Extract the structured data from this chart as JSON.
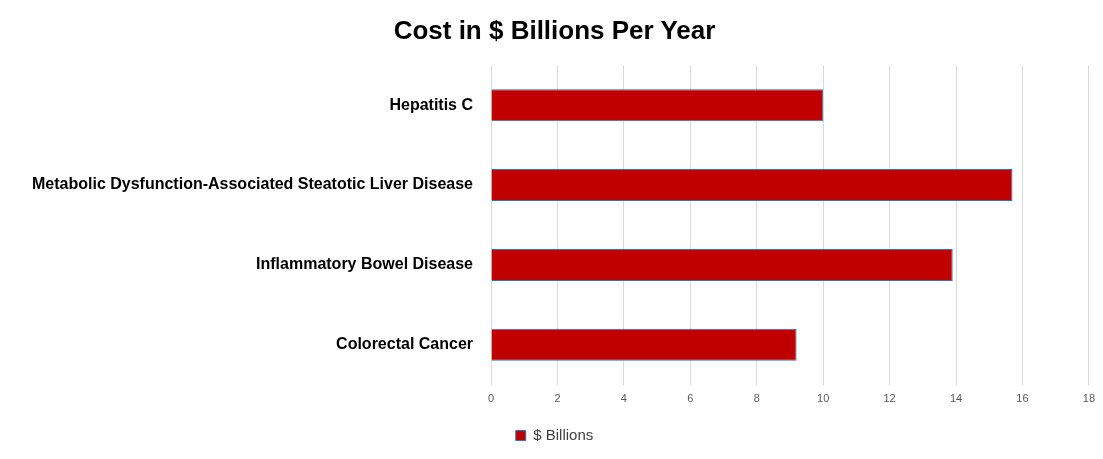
{
  "chart_data": {
    "type": "bar",
    "orientation": "horizontal",
    "title": "Cost in $ Billions Per Year",
    "categories": [
      "Hepatitis C",
      "Metabolic Dysfunction-Associated Steatotic Liver Disease",
      "Inflammatory Bowel Disease",
      "Colorectal Cancer"
    ],
    "series": [
      {
        "name": "$ Billions",
        "color": "#c00000",
        "values": [
          10,
          15.7,
          13.9,
          9.2
        ]
      }
    ],
    "xlim": [
      0,
      18
    ],
    "xticks": [
      0,
      2,
      4,
      6,
      8,
      10,
      12,
      14,
      16,
      18
    ],
    "grid": "x",
    "legend": "bottom"
  }
}
